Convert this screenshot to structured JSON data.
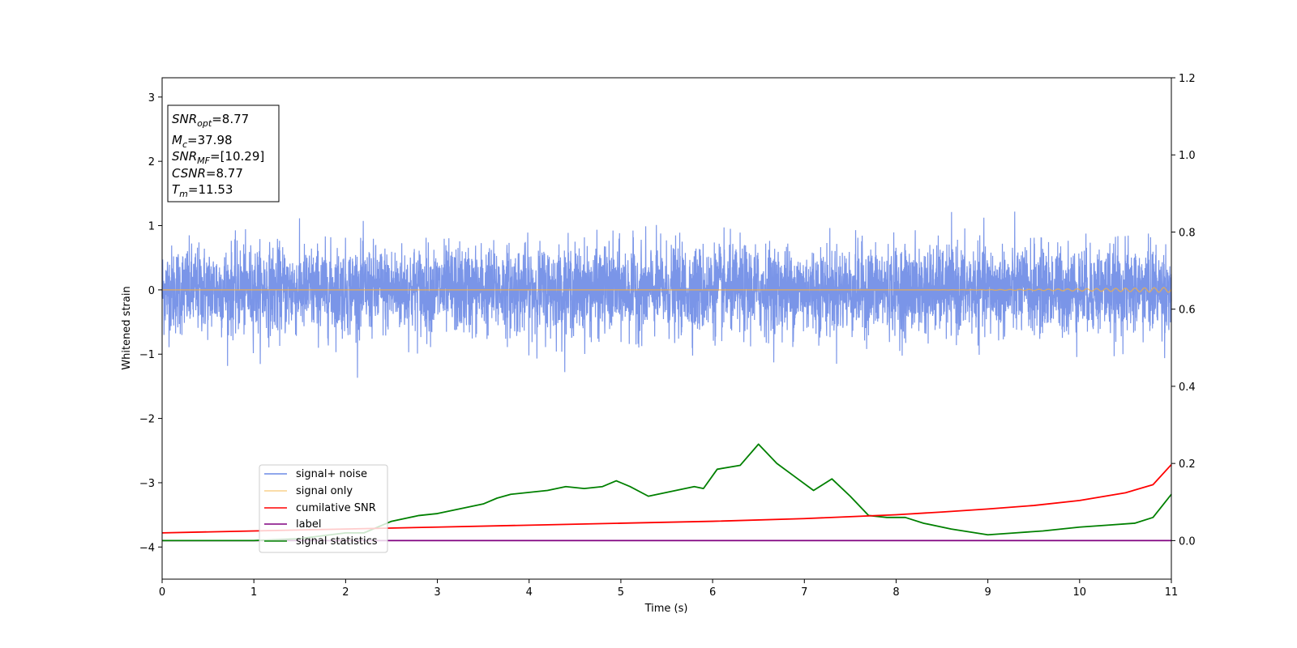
{
  "chart_data": {
    "type": "line",
    "xlabel": "Time (s)",
    "ylabel": "Whitened strain",
    "xlim": [
      0,
      11
    ],
    "ylim": [
      -4.5,
      3.3
    ],
    "y2lim": [
      -0.1,
      1.2
    ],
    "x_ticks": [
      "0",
      "1",
      "2",
      "3",
      "4",
      "5",
      "6",
      "7",
      "8",
      "9",
      "10",
      "11"
    ],
    "y_ticks": [
      "−4",
      "−3",
      "−2",
      "−1",
      "0",
      "1",
      "2",
      "3"
    ],
    "y2_ticks": [
      "0.0",
      "0.2",
      "0.4",
      "0.6",
      "0.8",
      "1.0",
      "1.2"
    ],
    "legend_position": "lower-left",
    "grid": false,
    "info_box": [
      {
        "base": "SNR",
        "sub": "opt",
        "value": "=8.77"
      },
      {
        "base": "M",
        "sub": "c",
        "value": "=37.98"
      },
      {
        "base": "SNR",
        "sub": "MF",
        "value": "=[10.29]"
      },
      {
        "base": "CSNR",
        "sub": "",
        "value": "=8.77"
      },
      {
        "base": "T",
        "sub": "m",
        "value": "=11.53"
      }
    ],
    "series": [
      {
        "name": "signal+ noise",
        "axis": "left",
        "color": "#6b8ae6",
        "note_shape": "dense noise band",
        "typical_range": [
          -0.8,
          0.8
        ],
        "max": 1.42,
        "min": -1.57
      },
      {
        "name": "signal only",
        "axis": "left",
        "color": "#f5b041",
        "x": [
          0,
          8,
          9,
          10,
          11
        ],
        "y": [
          0,
          0,
          0,
          0,
          0
        ],
        "oscillation_amplitude_end": 0.04
      },
      {
        "name": "cumilative SNR",
        "axis": "right",
        "color": "#ff0000",
        "x": [
          0,
          1,
          2,
          3,
          4,
          5,
          6,
          7,
          8,
          8.5,
          9,
          9.5,
          10,
          10.5,
          10.8,
          11
        ],
        "y": [
          0.02,
          0.025,
          0.03,
          0.035,
          0.04,
          0.045,
          0.05,
          0.057,
          0.067,
          0.074,
          0.082,
          0.091,
          0.104,
          0.124,
          0.145,
          0.197
        ]
      },
      {
        "name": "label",
        "axis": "right",
        "color": "#800080",
        "x": [
          0,
          11
        ],
        "y": [
          0.0,
          0.0
        ]
      },
      {
        "name": "signal statistics",
        "axis": "right",
        "color": "#008000",
        "x": [
          0,
          1,
          1.5,
          2,
          2.2,
          2.5,
          2.8,
          3.0,
          3.2,
          3.5,
          3.65,
          3.8,
          4.0,
          4.2,
          4.4,
          4.6,
          4.8,
          4.95,
          5.1,
          5.3,
          5.6,
          5.8,
          5.9,
          6.05,
          6.3,
          6.5,
          6.7,
          6.9,
          7.1,
          7.3,
          7.5,
          7.7,
          7.9,
          8.1,
          8.3,
          8.6,
          9.0,
          9.3,
          9.6,
          10.0,
          10.3,
          10.6,
          10.8,
          10.9,
          11.0
        ],
        "y": [
          0.0,
          0.0,
          0.005,
          0.02,
          0.02,
          0.05,
          0.065,
          0.07,
          0.08,
          0.095,
          0.11,
          0.12,
          0.125,
          0.13,
          0.14,
          0.135,
          0.14,
          0.155,
          0.14,
          0.115,
          0.13,
          0.14,
          0.135,
          0.185,
          0.195,
          0.25,
          0.2,
          0.165,
          0.13,
          0.16,
          0.115,
          0.065,
          0.06,
          0.06,
          0.045,
          0.03,
          0.015,
          0.02,
          0.025,
          0.035,
          0.04,
          0.045,
          0.06,
          0.09,
          0.12
        ]
      }
    ]
  }
}
